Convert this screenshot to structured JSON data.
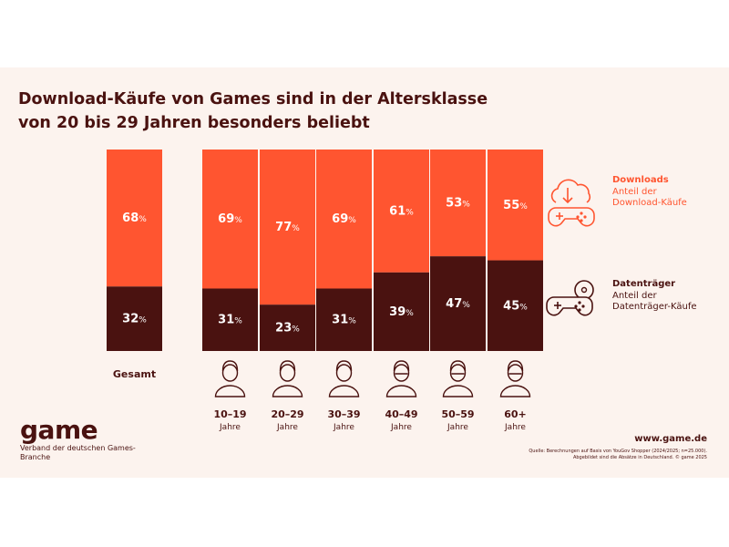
{
  "title_lines": [
    "Download-Käufe von Games sind in der Altersklasse",
    "von 20 bis 29 Jahren besonders beliebt"
  ],
  "colors": {
    "download": "#ff5530",
    "datentraeger": "#4a1210",
    "text_dark": "#4a1210",
    "panel_bg": "#fcf3ee"
  },
  "chart_data": {
    "type": "bar",
    "stacked": true,
    "unit": "%",
    "categories": [
      {
        "label": "Gesamt",
        "sub": ""
      },
      {
        "label": "10–19",
        "sub": "Jahre"
      },
      {
        "label": "20–29",
        "sub": "Jahre"
      },
      {
        "label": "30–39",
        "sub": "Jahre"
      },
      {
        "label": "40–49",
        "sub": "Jahre"
      },
      {
        "label": "50–59",
        "sub": "Jahre"
      },
      {
        "label": "60+",
        "sub": "Jahre"
      }
    ],
    "series": [
      {
        "name": "Downloads",
        "values": [
          68,
          69,
          77,
          69,
          61,
          53,
          55
        ]
      },
      {
        "name": "Datenträger",
        "values": [
          32,
          31,
          23,
          31,
          39,
          47,
          45
        ]
      }
    ],
    "ylim": [
      0,
      100
    ]
  },
  "avatar_icons": [
    "avatar-10-19-icon",
    "avatar-20-29-icon",
    "avatar-30-39-icon",
    "avatar-40-49-icon",
    "avatar-50-59-icon",
    "avatar-60plus-icon"
  ],
  "legend": {
    "downloads": {
      "title": "Downloads",
      "desc": "Anteil der Download-Käufe",
      "icon": "cloud-download-gamepad-icon"
    },
    "datentraeger": {
      "title": "Datenträger",
      "desc": "Anteil der Datenträger-Käufe",
      "icon": "disc-gamepad-icon"
    }
  },
  "brand": {
    "word": "game",
    "sub": "Verband der deutschen Games-Branche"
  },
  "website": "www.game.de",
  "source_lines": [
    "Quelle: Berechnungen auf Basis von YouGov Shopper (2024/2025; n=25.000).",
    "Abgebildet sind die Absätze in Deutschland. © game 2025"
  ]
}
